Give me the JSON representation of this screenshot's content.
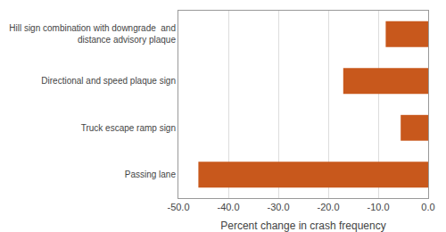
{
  "chart_data": {
    "type": "bar",
    "orientation": "horizontal",
    "categories": [
      "Passing lane",
      "Truck escape ramp sign",
      "Directional and speed plaque sign",
      "Hill sign combination with downgrade  and\ndistance advisory plaque"
    ],
    "values": [
      -46.0,
      -5.5,
      -17.0,
      -8.5
    ],
    "color": "#c8581c",
    "xlabel": "Percent change in crash frequency",
    "xlim": [
      -50.0,
      0.0
    ],
    "xticks": [
      {
        "value": -50.0,
        "label": "-50.0"
      },
      {
        "value": -40.0,
        "label": "-40.0"
      },
      {
        "value": -30.0,
        "label": "-30.0"
      },
      {
        "value": -20.0,
        "label": "-20.0"
      },
      {
        "value": -10.0,
        "label": "-10.0"
      },
      {
        "value": 0.0,
        "label": "0.0"
      }
    ],
    "grid": true
  }
}
